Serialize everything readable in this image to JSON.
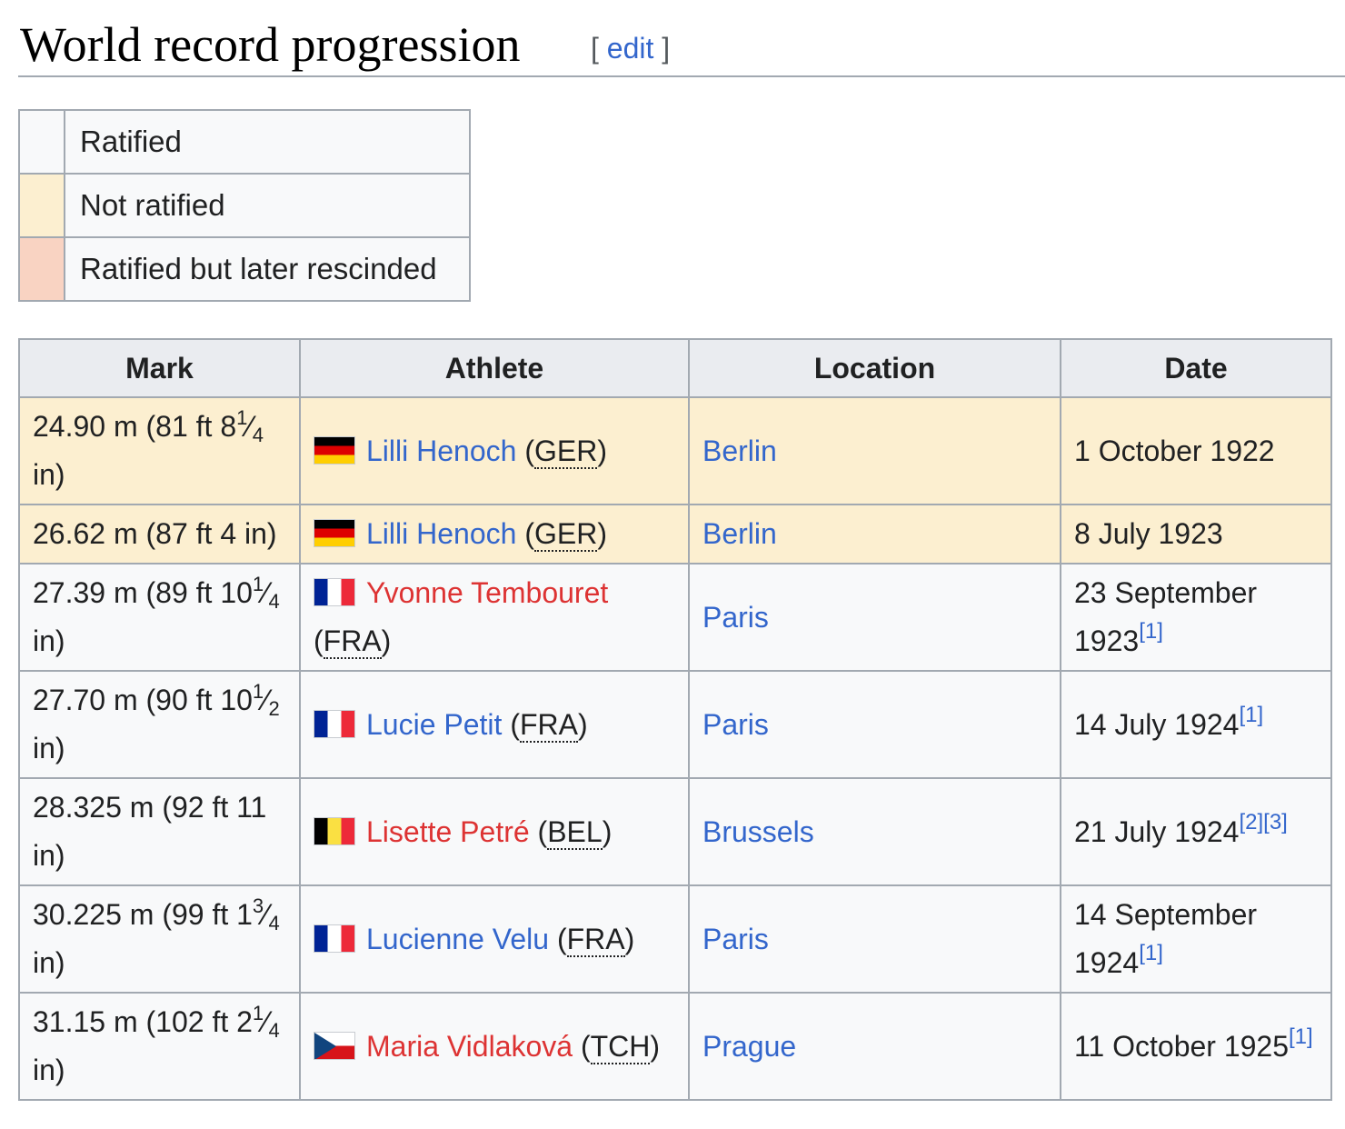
{
  "heading": {
    "title": "World record progression",
    "bracket_open": "[",
    "edit": "edit",
    "bracket_close": "]"
  },
  "legend": [
    {
      "label": "Ratified",
      "color": "#f8f9fa"
    },
    {
      "label": "Not ratified",
      "color": "#fcefd0"
    },
    {
      "label": "Ratified but later rescinded",
      "color": "#f9d3c2"
    }
  ],
  "table": {
    "headers": [
      "Mark",
      "Athlete",
      "Location",
      "Date"
    ],
    "rows": [
      {
        "status": "not-ratified",
        "mark": "24.90 m (81 ft 8",
        "frac_num": "1",
        "frac_den": "4",
        "mark_end": " in)",
        "flag": "ger",
        "athlete": "Lilli Henoch",
        "athlete_link": "blue",
        "nation": "GER",
        "location": "Berlin",
        "date": "1 October 1922",
        "refs": []
      },
      {
        "status": "not-ratified",
        "mark": "26.62 m (87 ft 4 in)",
        "frac_num": "",
        "frac_den": "",
        "mark_end": "",
        "flag": "ger",
        "athlete": "Lilli Henoch",
        "athlete_link": "blue",
        "nation": "GER",
        "location": "Berlin",
        "date": "8 July 1923",
        "refs": []
      },
      {
        "status": "ratified",
        "mark": "27.39 m (89 ft 10",
        "frac_num": "1",
        "frac_den": "4",
        "mark_end": " in)",
        "flag": "fra",
        "athlete": "Yvonne Tembouret",
        "athlete_link": "red",
        "nation": "FRA",
        "location": "Paris",
        "date": "23 September 1923",
        "refs": [
          "[1]"
        ]
      },
      {
        "status": "ratified",
        "mark": "27.70 m (90 ft 10",
        "frac_num": "1",
        "frac_den": "2",
        "mark_end": " in)",
        "flag": "fra",
        "athlete": "Lucie Petit",
        "athlete_link": "blue",
        "nation": "FRA",
        "location": "Paris",
        "date": "14 July 1924",
        "refs": [
          "[1]"
        ]
      },
      {
        "status": "ratified",
        "mark": "28.325 m (92 ft 11 in)",
        "frac_num": "",
        "frac_den": "",
        "mark_end": "",
        "flag": "bel",
        "athlete": "Lisette Petré",
        "athlete_link": "red",
        "nation": "BEL",
        "location": "Brussels",
        "date": "21 July 1924",
        "refs": [
          "[2]",
          "[3]"
        ]
      },
      {
        "status": "ratified",
        "mark": "30.225 m (99 ft 1",
        "frac_num": "3",
        "frac_den": "4",
        "mark_end": " in)",
        "flag": "fra",
        "athlete": "Lucienne Velu",
        "athlete_link": "blue",
        "nation": "FRA",
        "location": "Paris",
        "date": "14 September 1924",
        "refs": [
          "[1]"
        ]
      },
      {
        "status": "ratified",
        "mark": "31.15 m (102 ft 2",
        "frac_num": "1",
        "frac_den": "4",
        "mark_end": " in)",
        "flag": "cze",
        "athlete": "Maria Vidlaková",
        "athlete_link": "red",
        "nation": "TCH",
        "location": "Prague",
        "date": "11 October 1925",
        "refs": [
          "[1]"
        ]
      }
    ]
  }
}
